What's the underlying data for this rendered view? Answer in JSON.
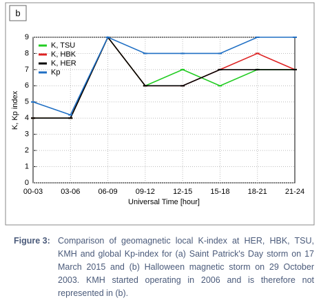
{
  "chart_data": {
    "type": "line",
    "panel_label": "b",
    "x_label": "Universal Time [hour]",
    "y_label": "K, Kp index",
    "categories": [
      "00-03",
      "03-06",
      "06-09",
      "09-12",
      "12-15",
      "15-18",
      "18-21",
      "21-24"
    ],
    "series": [
      {
        "name": "K, TSU",
        "color": "#22cc22",
        "values": [
          4,
          4,
          9,
          6,
          7,
          6,
          7,
          7
        ]
      },
      {
        "name": "K, HBK",
        "color": "#dd2222",
        "values": [
          4,
          4,
          9,
          6,
          6,
          7,
          8,
          7
        ]
      },
      {
        "name": "K, HER",
        "color": "#000000",
        "values": [
          4,
          4,
          9,
          6,
          6,
          7,
          7,
          7
        ]
      },
      {
        "name": "Kp",
        "color": "#1f6fc4",
        "values": [
          5,
          4.2,
          9,
          8,
          8,
          8,
          9,
          9
        ]
      }
    ],
    "ylim": [
      0,
      9
    ],
    "yticks": [
      0,
      1,
      2,
      3,
      4,
      5,
      6,
      7,
      8,
      9
    ],
    "grid": true,
    "legend": "upper left"
  },
  "caption": {
    "label": "Figure 3:",
    "text": "Comparison of geomagnetic local K-index at HER, HBK, TSU, KMH and global Kp-index for (a) Saint Patrick's Day storm on 17 March 2015 and (b) Halloween magnetic storm on 29 October 2003. KMH started operating in 2006 and is therefore not represented in (b)."
  }
}
